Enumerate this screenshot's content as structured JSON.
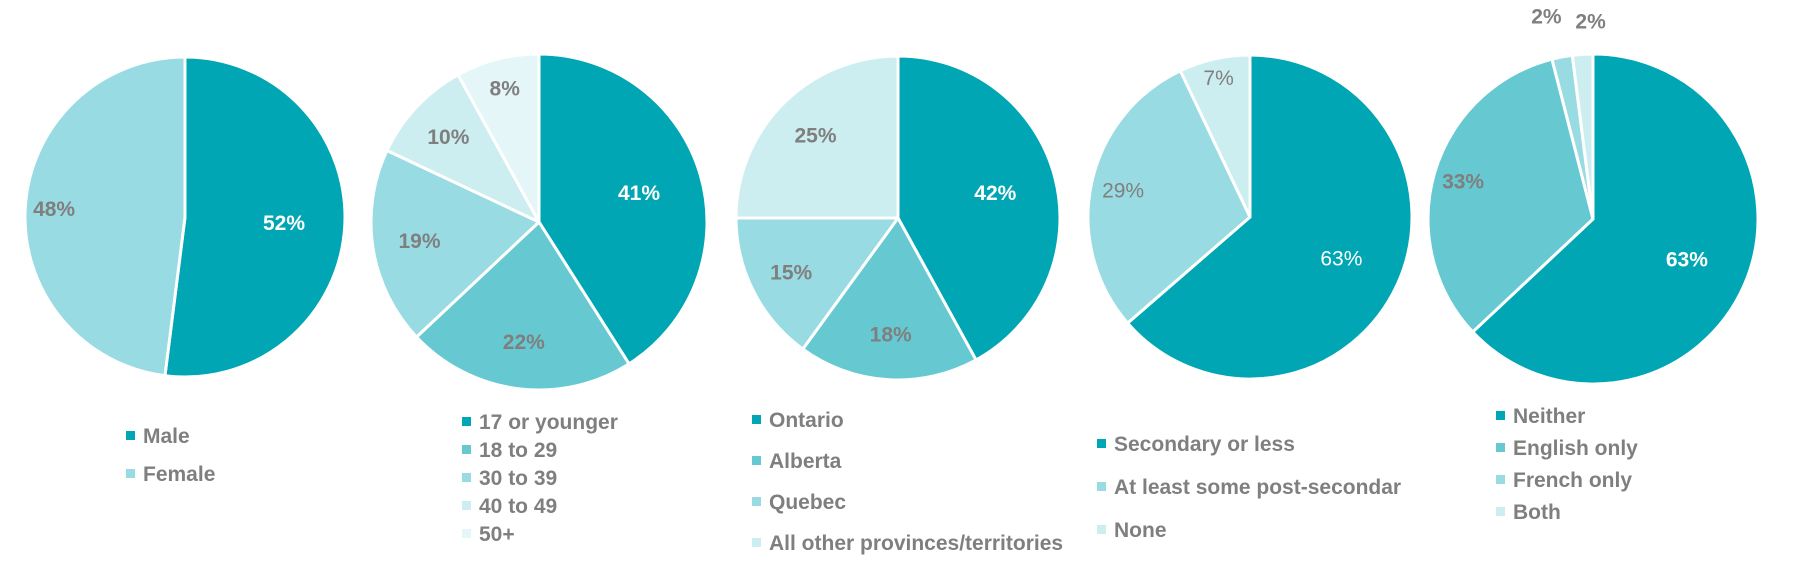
{
  "chart_data": [
    {
      "type": "pie",
      "categories": [
        "Male",
        "Female"
      ],
      "values": [
        52,
        48
      ],
      "labels": [
        "52%",
        "48%"
      ],
      "colors": [
        "#00a6b3",
        "#99dbe2"
      ],
      "label_colors": [
        "#ffffff",
        "#7f7f7f"
      ],
      "label_bold": [
        true,
        true
      ]
    },
    {
      "type": "pie",
      "categories": [
        "17 or younger",
        "18 to 29",
        "30 to 39",
        "40 to 49",
        "50+"
      ],
      "values": [
        41,
        22,
        19,
        10,
        8
      ],
      "labels": [
        "41%",
        "22%",
        "19%",
        "10%",
        "8%"
      ],
      "colors": [
        "#00a6b3",
        "#66c9d1",
        "#99dbe2",
        "#cceef1",
        "#e5f6f8"
      ],
      "label_colors": [
        "#ffffff",
        "#7f7f7f",
        "#7f7f7f",
        "#7f7f7f",
        "#7f7f7f"
      ],
      "label_bold": [
        true,
        true,
        true,
        true,
        true
      ]
    },
    {
      "type": "pie",
      "categories": [
        "Ontario",
        "Alberta",
        "Quebec",
        "All other provinces/territories"
      ],
      "values": [
        42,
        18,
        15,
        25
      ],
      "labels": [
        "42%",
        "18%",
        "15%",
        "25%"
      ],
      "colors": [
        "#00a6b3",
        "#66c9d1",
        "#99dbe2",
        "#cceef1"
      ],
      "label_colors": [
        "#ffffff",
        "#7f7f7f",
        "#7f7f7f",
        "#7f7f7f"
      ],
      "label_bold": [
        true,
        true,
        true,
        true
      ]
    },
    {
      "type": "pie",
      "categories": [
        "Secondary or less",
        "At least some post-secondar",
        "None"
      ],
      "values": [
        63,
        29,
        7
      ],
      "labels": [
        "63%",
        "29%",
        "7%"
      ],
      "colors": [
        "#00a6b3",
        "#99dbe2",
        "#cceef1"
      ],
      "label_colors": [
        "#ffffff",
        "#7f7f7f",
        "#7f7f7f"
      ],
      "label_bold": [
        false,
        false,
        false
      ]
    },
    {
      "type": "pie",
      "categories": [
        "Neither",
        "English only",
        "French only",
        "Both"
      ],
      "values": [
        63,
        33,
        2,
        2
      ],
      "labels": [
        "63%",
        "33%",
        "2%",
        "2%"
      ],
      "colors": [
        "#00a6b3",
        "#66c9d1",
        "#99dbe2",
        "#cceef1"
      ],
      "label_colors": [
        "#ffffff",
        "#7f7f7f",
        "#7f7f7f",
        "#7f7f7f"
      ],
      "label_bold": [
        true,
        true,
        true,
        true
      ]
    }
  ]
}
